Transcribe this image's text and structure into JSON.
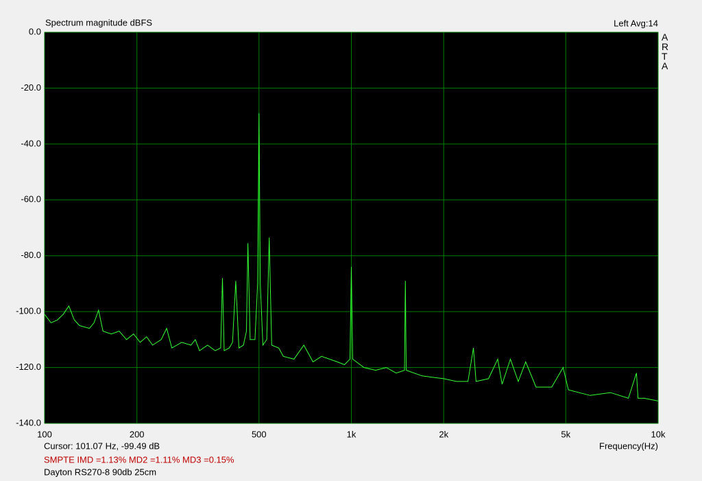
{
  "chart_data": {
    "type": "line",
    "title": "Spectrum magnitude dBFS",
    "status": "Left  Avg:14",
    "brand": "ARTA",
    "x_label": "Frequency(Hz)",
    "cursor": "Cursor: 101.07 Hz, -99.49 dB",
    "imd": "SMPTE IMD =1.13%  MD2 =1.11%  MD3 =0.15%",
    "note": "Dayton RS270-8 90db 25cm",
    "x_scale": "log",
    "grid": true,
    "color": "#33ff33",
    "x": [
      100,
      105,
      110,
      115,
      120,
      125,
      130,
      140,
      145,
      150,
      155,
      165,
      175,
      185,
      195,
      205,
      215,
      225,
      240,
      250,
      260,
      280,
      300,
      310,
      320,
      340,
      360,
      375,
      380,
      385,
      400,
      410,
      420,
      430,
      445,
      455,
      460,
      468,
      485,
      495,
      500,
      505,
      515,
      530,
      540,
      550,
      580,
      600,
      650,
      700,
      750,
      800,
      900,
      950,
      990,
      1000,
      1010,
      1100,
      1200,
      1300,
      1400,
      1490,
      1500,
      1510,
      1700,
      2000,
      2200,
      2400,
      2500,
      2550,
      2800,
      3000,
      3100,
      3300,
      3500,
      3700,
      4000,
      4500,
      4900,
      5100,
      6000,
      7000,
      8000,
      8500,
      8600,
      9000,
      10000
    ],
    "values": [
      -101,
      -104,
      -103,
      -101,
      -98,
      -103,
      -105,
      -106,
      -104,
      -99.5,
      -107,
      -108,
      -107,
      -110,
      -108,
      -111,
      -109,
      -112,
      -110,
      -106,
      -113,
      -111,
      -112,
      -110,
      -114,
      -112,
      -114,
      -113,
      -88,
      -114,
      -113,
      -111,
      -89,
      -113,
      -112,
      -107,
      -75.5,
      -110,
      -110,
      -90,
      -29,
      -90,
      -112,
      -110,
      -73.5,
      -112,
      -113,
      -116,
      -117,
      -112,
      -118,
      -116,
      -118,
      -119,
      -117,
      -84,
      -117,
      -120,
      -121,
      -120,
      -122,
      -121,
      -89,
      -121,
      -123,
      -124,
      -125,
      -125,
      -113,
      -125,
      -124,
      -117,
      -126,
      -117,
      -125,
      -118,
      -127,
      -127,
      -120,
      -128,
      -130,
      -129,
      -131,
      -122,
      -131,
      -131,
      -132
    ],
    "xlim": [
      100,
      10000
    ],
    "xticks": [
      100,
      200,
      500,
      {
        "value": 1000,
        "label": "1k"
      },
      {
        "value": 2000,
        "label": "2k"
      },
      {
        "value": 5000,
        "label": "5k"
      },
      {
        "value": 10000,
        "label": "10k"
      }
    ],
    "ylim": [
      -140,
      0
    ],
    "yticks": [
      {
        "value": 0,
        "label": "0.0"
      },
      {
        "value": -20,
        "label": "-20.0"
      },
      {
        "value": -40,
        "label": "-40.0"
      },
      {
        "value": -60,
        "label": "-60.0"
      },
      {
        "value": -80,
        "label": "-80.0"
      },
      {
        "value": -100,
        "label": "-100.0"
      },
      {
        "value": -120,
        "label": "-120.0"
      },
      {
        "value": -140,
        "label": "-140.0"
      }
    ]
  }
}
